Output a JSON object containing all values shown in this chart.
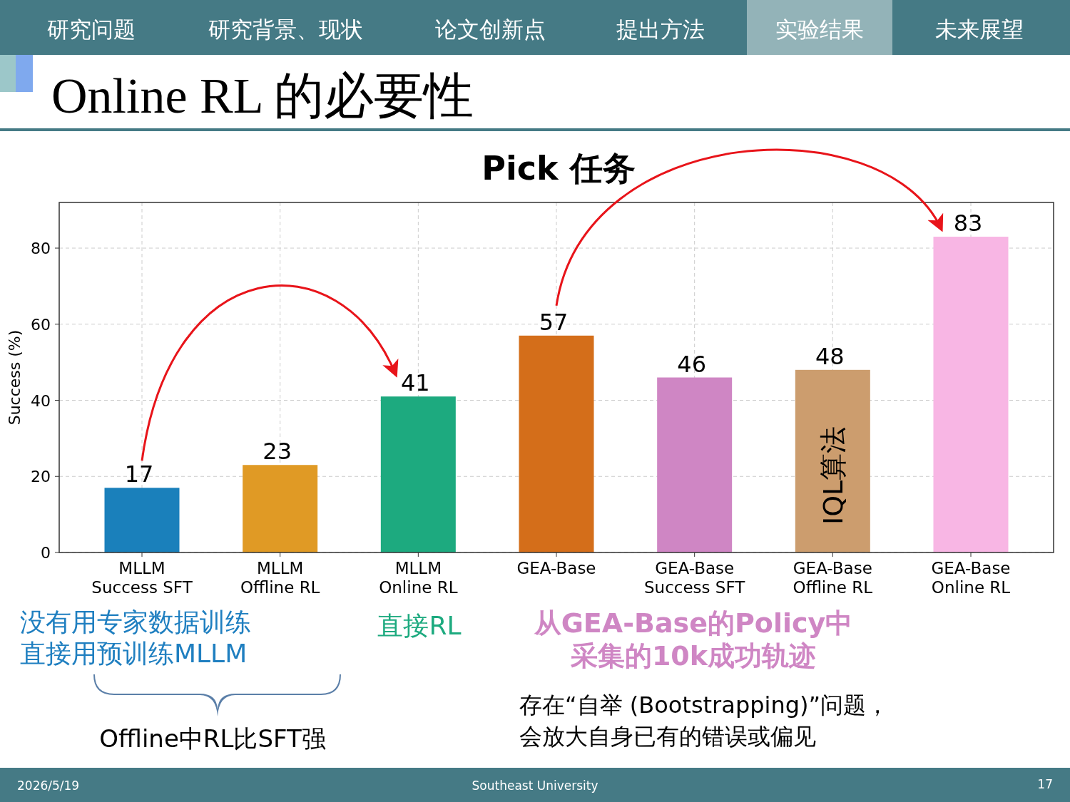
{
  "chart_data": {
    "type": "bar",
    "title": "Pick 任务",
    "ylabel": "Success (%)",
    "categories": [
      "MLLM\nSuccess SFT",
      "MLLM\nOffline RL",
      "MLLM\nOnline RL",
      "GEA-Base",
      "GEA-Base\nSuccess SFT",
      "GEA-Base\nOffline RL",
      "GEA-Base\nOnline RL"
    ],
    "values": [
      17,
      23,
      41,
      57,
      46,
      48,
      83
    ],
    "colors": [
      "#1a80bb",
      "#e09a25",
      "#1daa7f",
      "#d46e1a",
      "#cf86c4",
      "#cc9d6e",
      "#f8b6e4"
    ],
    "ylim": [
      0,
      92
    ],
    "yticks": [
      0,
      20,
      40,
      60,
      80
    ],
    "grid": true,
    "data_labels": true,
    "annotations": [
      "研究问题",
      "研究背景、现状",
      "论文创新点",
      "提出方法",
      "实验结果",
      "未来展望",
      "Online RL 的必要性",
      "没有用专家数据训练",
      "直接用预训练MLLM",
      "直接RL",
      "从GEA-Base的Policy中",
      "采集的10k成功轨迹",
      "Offline中RL比SFT强",
      "存在“自举 (Bootstrapping)”问题，",
      "会放大自身已有的错误或偏见",
      "2026/5/19",
      "Southeast University",
      "17",
      "IQL算法"
    ]
  }
}
